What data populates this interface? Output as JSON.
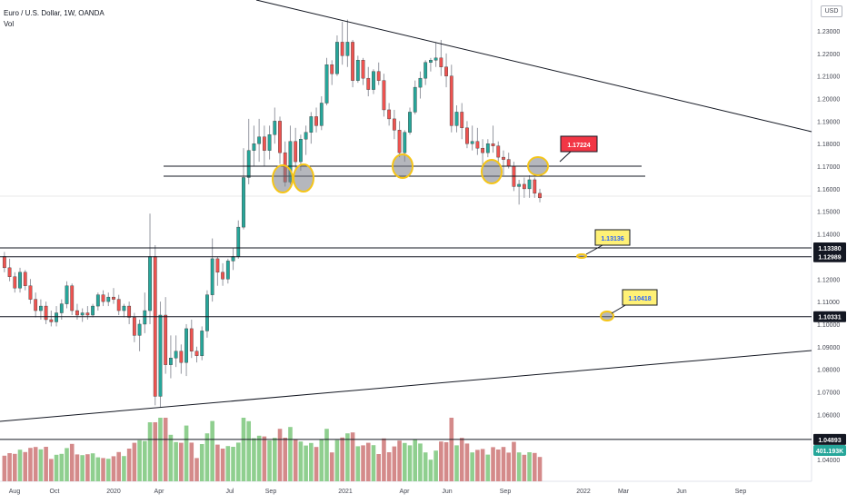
{
  "header": {
    "title": "Euro / U.S. Dollar, 1W, OANDA",
    "volume_label": "Vol"
  },
  "price_scale": {
    "unit": "USD",
    "ticks": [
      "1.23000",
      "1.22000",
      "1.21000",
      "1.20000",
      "1.19000",
      "1.18000",
      "1.17000",
      "1.16000",
      "1.15000",
      "1.14000",
      "1.13000",
      "1.12000",
      "1.11000",
      "1.10000",
      "1.09000",
      "1.08000",
      "1.07000",
      "1.06000",
      "1.05000",
      "1.04000"
    ]
  },
  "time_scale": {
    "labels": [
      "Aug",
      "Oct",
      "2020",
      "Apr",
      "Jul",
      "Sep",
      "2021",
      "Apr",
      "Jun",
      "Sep",
      "2022",
      "Mar",
      "Jun",
      "Sep"
    ]
  },
  "colors": {
    "up": "#26a69a",
    "down": "#ef5350",
    "vol_up": "#8fcf8f",
    "vol_down": "#d48a8a",
    "line": "#131722",
    "axis_badge_bg": "#131722",
    "axis_badge_text": "#ffffff",
    "volume_badge_bg": "#26a69a"
  },
  "levels": [
    {
      "price": "1.13380",
      "badge": "1.13380"
    },
    {
      "price": "1.12989",
      "badge": "1.12989"
    },
    {
      "price": "1.10331",
      "badge": "1.10331"
    },
    {
      "price": "1.04893",
      "badge": "1.04893"
    }
  ],
  "zone_lines": [
    "1.1705",
    "1.1676"
  ],
  "callouts": [
    {
      "text": "1.17224",
      "style": "red"
    },
    {
      "text": "1.13136",
      "style": "yellow"
    },
    {
      "text": "1.10418",
      "style": "yellow"
    }
  ],
  "volume_readout": "401.193K",
  "chart_data": {
    "type": "candlestick",
    "title": "Euro / U.S. Dollar, 1W, OANDA",
    "series_note": "Weekly OHLC approximated from chart",
    "y_range": [
      1.04,
      1.235
    ],
    "candles": [
      [
        1.13,
        1.132,
        1.123,
        1.125
      ],
      [
        1.125,
        1.129,
        1.119,
        1.121
      ],
      [
        1.121,
        1.123,
        1.114,
        1.116
      ],
      [
        1.116,
        1.125,
        1.114,
        1.123
      ],
      [
        1.123,
        1.124,
        1.115,
        1.117
      ],
      [
        1.117,
        1.12,
        1.109,
        1.111
      ],
      [
        1.111,
        1.114,
        1.103,
        1.106
      ],
      [
        1.106,
        1.111,
        1.102,
        1.108
      ],
      [
        1.108,
        1.11,
        1.1,
        1.102
      ],
      [
        1.102,
        1.106,
        1.099,
        1.101
      ],
      [
        1.101,
        1.108,
        1.099,
        1.105
      ],
      [
        1.105,
        1.111,
        1.102,
        1.109
      ],
      [
        1.109,
        1.119,
        1.107,
        1.117
      ],
      [
        1.117,
        1.118,
        1.104,
        1.106
      ],
      [
        1.106,
        1.109,
        1.102,
        1.104
      ],
      [
        1.104,
        1.107,
        1.101,
        1.105
      ],
      [
        1.105,
        1.108,
        1.102,
        1.104
      ],
      [
        1.104,
        1.109,
        1.103,
        1.108
      ],
      [
        1.108,
        1.114,
        1.106,
        1.113
      ],
      [
        1.113,
        1.115,
        1.108,
        1.11
      ],
      [
        1.11,
        1.114,
        1.108,
        1.112
      ],
      [
        1.112,
        1.116,
        1.109,
        1.111
      ],
      [
        1.111,
        1.113,
        1.104,
        1.106
      ],
      [
        1.106,
        1.109,
        1.103,
        1.108
      ],
      [
        1.108,
        1.11,
        1.1,
        1.103
      ],
      [
        1.103,
        1.105,
        1.092,
        1.095
      ],
      [
        1.095,
        1.102,
        1.088,
        1.1
      ],
      [
        1.1,
        1.114,
        1.096,
        1.106
      ],
      [
        1.106,
        1.149,
        1.1,
        1.13
      ],
      [
        1.13,
        1.135,
        1.064,
        1.068
      ],
      [
        1.068,
        1.11,
        1.063,
        1.104
      ],
      [
        1.104,
        1.112,
        1.078,
        1.082
      ],
      [
        1.082,
        1.095,
        1.076,
        1.085
      ],
      [
        1.085,
        1.095,
        1.081,
        1.088
      ],
      [
        1.088,
        1.091,
        1.078,
        1.083
      ],
      [
        1.083,
        1.1,
        1.077,
        1.098
      ],
      [
        1.098,
        1.102,
        1.085,
        1.088
      ],
      [
        1.088,
        1.09,
        1.083,
        1.086
      ],
      [
        1.086,
        1.099,
        1.084,
        1.097
      ],
      [
        1.097,
        1.115,
        1.094,
        1.113
      ],
      [
        1.113,
        1.138,
        1.11,
        1.129
      ],
      [
        1.129,
        1.13,
        1.117,
        1.123
      ],
      [
        1.123,
        1.127,
        1.117,
        1.12
      ],
      [
        1.12,
        1.129,
        1.118,
        1.128
      ],
      [
        1.128,
        1.134,
        1.124,
        1.13
      ],
      [
        1.13,
        1.146,
        1.129,
        1.143
      ],
      [
        1.143,
        1.178,
        1.142,
        1.165
      ],
      [
        1.165,
        1.191,
        1.162,
        1.177
      ],
      [
        1.177,
        1.188,
        1.17,
        1.18
      ],
      [
        1.18,
        1.191,
        1.172,
        1.183
      ],
      [
        1.183,
        1.188,
        1.17,
        1.177
      ],
      [
        1.177,
        1.188,
        1.173,
        1.184
      ],
      [
        1.184,
        1.196,
        1.18,
        1.19
      ],
      [
        1.19,
        1.192,
        1.171,
        1.176
      ],
      [
        1.176,
        1.181,
        1.161,
        1.163
      ],
      [
        1.163,
        1.188,
        1.162,
        1.181
      ],
      [
        1.181,
        1.187,
        1.169,
        1.172
      ],
      [
        1.172,
        1.184,
        1.168,
        1.182
      ],
      [
        1.182,
        1.188,
        1.175,
        1.185
      ],
      [
        1.185,
        1.194,
        1.18,
        1.192
      ],
      [
        1.192,
        1.196,
        1.185,
        1.188
      ],
      [
        1.188,
        1.201,
        1.186,
        1.198
      ],
      [
        1.198,
        1.218,
        1.197,
        1.215
      ],
      [
        1.215,
        1.217,
        1.206,
        1.211
      ],
      [
        1.211,
        1.228,
        1.21,
        1.225
      ],
      [
        1.225,
        1.234,
        1.215,
        1.219
      ],
      [
        1.219,
        1.235,
        1.214,
        1.225
      ],
      [
        1.225,
        1.226,
        1.205,
        1.208
      ],
      [
        1.208,
        1.219,
        1.207,
        1.217
      ],
      [
        1.217,
        1.218,
        1.206,
        1.209
      ],
      [
        1.209,
        1.214,
        1.201,
        1.204
      ],
      [
        1.204,
        1.213,
        1.202,
        1.212
      ],
      [
        1.212,
        1.216,
        1.206,
        1.208
      ],
      [
        1.208,
        1.211,
        1.192,
        1.195
      ],
      [
        1.195,
        1.198,
        1.188,
        1.191
      ],
      [
        1.191,
        1.195,
        1.182,
        1.186
      ],
      [
        1.186,
        1.19,
        1.174,
        1.176
      ],
      [
        1.176,
        1.186,
        1.172,
        1.185
      ],
      [
        1.185,
        1.196,
        1.184,
        1.194
      ],
      [
        1.194,
        1.208,
        1.193,
        1.205
      ],
      [
        1.205,
        1.212,
        1.2,
        1.209
      ],
      [
        1.209,
        1.217,
        1.206,
        1.216
      ],
      [
        1.216,
        1.218,
        1.212,
        1.217
      ],
      [
        1.217,
        1.225,
        1.214,
        1.218
      ],
      [
        1.218,
        1.226,
        1.21,
        1.214
      ],
      [
        1.214,
        1.22,
        1.205,
        1.21
      ],
      [
        1.21,
        1.215,
        1.185,
        1.188
      ],
      [
        1.188,
        1.197,
        1.185,
        1.194
      ],
      [
        1.194,
        1.198,
        1.182,
        1.187
      ],
      [
        1.187,
        1.19,
        1.178,
        1.18
      ],
      [
        1.18,
        1.188,
        1.177,
        1.181
      ],
      [
        1.181,
        1.187,
        1.175,
        1.178
      ],
      [
        1.178,
        1.182,
        1.17,
        1.176
      ],
      [
        1.176,
        1.182,
        1.174,
        1.18
      ],
      [
        1.18,
        1.188,
        1.176,
        1.179
      ],
      [
        1.179,
        1.181,
        1.171,
        1.174
      ],
      [
        1.174,
        1.177,
        1.166,
        1.173
      ],
      [
        1.173,
        1.176,
        1.169,
        1.17
      ],
      [
        1.17,
        1.172,
        1.159,
        1.161
      ],
      [
        1.161,
        1.164,
        1.153,
        1.162
      ],
      [
        1.162,
        1.165,
        1.156,
        1.16
      ],
      [
        1.16,
        1.166,
        1.156,
        1.164
      ],
      [
        1.164,
        1.165,
        1.156,
        1.158
      ],
      [
        1.158,
        1.16,
        1.154,
        1.156
      ]
    ],
    "volume_range": [
      0,
      1200000
    ]
  }
}
